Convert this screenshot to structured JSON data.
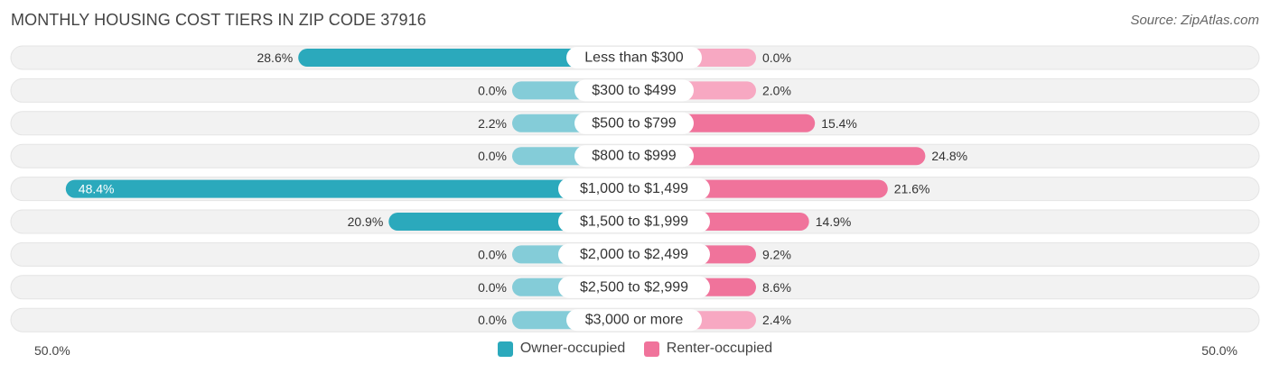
{
  "title": "MONTHLY HOUSING COST TIERS IN ZIP CODE 37916",
  "source": "Source: ZipAtlas.com",
  "axis": {
    "left_label": "50.0%",
    "right_label": "50.0%"
  },
  "legend": {
    "owner": "Owner-occupied",
    "renter": "Renter-occupied"
  },
  "colors": {
    "owner": "#2ba9bc",
    "owner_light": "#84ccd8",
    "renter": "#f0739b",
    "renter_light": "#f7a8c2",
    "track": "#f2f2f2"
  },
  "chart_data": {
    "type": "bar",
    "orientation": "horizontal-diverging",
    "xlim": [
      0,
      50
    ],
    "categories": [
      "Less than $300",
      "$300 to $499",
      "$500 to $799",
      "$800 to $999",
      "$1,000 to $1,499",
      "$1,500 to $1,999",
      "$2,000 to $2,499",
      "$2,500 to $2,999",
      "$3,000 or more"
    ],
    "series": [
      {
        "name": "Owner-occupied",
        "values": [
          28.6,
          0.0,
          2.2,
          0.0,
          48.4,
          20.9,
          0.0,
          0.0,
          0.0
        ],
        "labels": [
          "28.6%",
          "0.0%",
          "2.2%",
          "0.0%",
          "48.4%",
          "20.9%",
          "0.0%",
          "0.0%",
          "0.0%"
        ]
      },
      {
        "name": "Renter-occupied",
        "values": [
          0.0,
          2.0,
          15.4,
          24.8,
          21.6,
          14.9,
          9.2,
          8.6,
          2.4
        ],
        "labels": [
          "0.0%",
          "2.0%",
          "15.4%",
          "24.8%",
          "21.6%",
          "14.9%",
          "9.2%",
          "8.6%",
          "2.4%"
        ]
      }
    ],
    "legend_position": "bottom"
  }
}
